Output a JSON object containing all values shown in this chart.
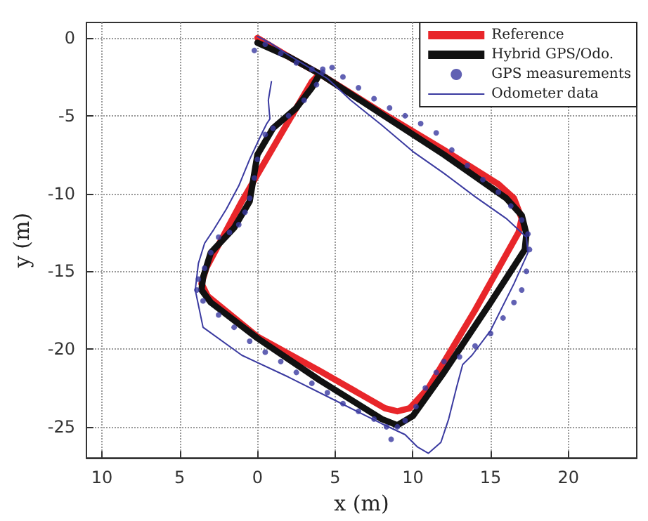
{
  "chart_data": {
    "type": "line",
    "xlabel": "x (m)",
    "ylabel": "y (m)",
    "xlim": [
      -11,
      24.4
    ],
    "ylim": [
      -27,
      1
    ],
    "xticks": [
      {
        "value": -10,
        "label": "10"
      },
      {
        "value": -5,
        "label": "5"
      },
      0,
      5,
      10,
      15,
      20
    ],
    "yticks": [
      -25,
      -20,
      -15,
      -10,
      -5,
      0
    ],
    "grid": true,
    "legend": "top right",
    "series": [
      {
        "name": "Reference",
        "color": "#e8262a",
        "line_style": "solid",
        "marker": "none",
        "x": [
          0,
          2,
          4,
          8,
          12,
          15.5,
          16.5,
          17,
          16.8,
          14,
          11,
          9.8,
          9,
          8.2,
          4,
          0,
          -3.2,
          -3.6,
          -3.3,
          -1,
          1.5,
          3.5,
          4
        ],
        "values": [
          0,
          -1.2,
          -2.3,
          -4.8,
          -7.2,
          -9.4,
          -10.3,
          -11.6,
          -12.5,
          -17.5,
          -22.5,
          -23.8,
          -24,
          -23.8,
          -21.4,
          -19.2,
          -16.6,
          -15.8,
          -14.8,
          -10.5,
          -6.2,
          -2.8,
          -2.3
        ]
      },
      {
        "name": "Hybrid GPS/Odo.",
        "color": "#111111",
        "line_style": "solid",
        "marker": "none",
        "x": [
          0,
          2,
          4,
          8,
          12,
          16,
          17,
          17.3,
          17.2,
          15,
          12,
          10,
          9,
          8,
          4,
          0,
          -3,
          -3.6,
          -3.5,
          -3,
          -1.5,
          -0.5,
          0,
          1,
          2.5,
          3.5,
          4
        ],
        "values": [
          -0.3,
          -1.2,
          -2.3,
          -4.9,
          -7.5,
          -10.3,
          -11.4,
          -12.6,
          -13.6,
          -17,
          -21.5,
          -24.3,
          -24.9,
          -24.5,
          -22,
          -19.3,
          -17,
          -16.2,
          -15.4,
          -13.8,
          -12.2,
          -10.5,
          -7.5,
          -5.8,
          -4.5,
          -3.2,
          -2.3
        ]
      },
      {
        "name": "GPS measurements",
        "type": "scatter",
        "color": "#3a3aa0",
        "marker": "circle",
        "x": [
          -0.2,
          0.5,
          1.5,
          2.5,
          3.5,
          4.2,
          4.8,
          5.5,
          6.5,
          7.5,
          8.5,
          9.5,
          10.5,
          11.5,
          12.5,
          13.5,
          14.5,
          15.5,
          16.3,
          17,
          17.4,
          17.5,
          17.3,
          17,
          16.5,
          15.8,
          15,
          14,
          13,
          12,
          11.5,
          10.8,
          10.2,
          9.5,
          9,
          8.6,
          8.3,
          7.5,
          6.5,
          5.5,
          4.5,
          3.5,
          2.5,
          1.5,
          0.5,
          -0.5,
          -1.5,
          -2.5,
          -3.5,
          -3.9,
          -3.8,
          -3.4,
          -3,
          -2.5,
          -1.8,
          -1.2,
          -0.8,
          -0.5,
          -0.2,
          0,
          0.5,
          1,
          2,
          3,
          3.8,
          4.2
        ],
        "values": [
          -0.8,
          -0.4,
          -1,
          -1.6,
          -2,
          -2,
          -1.9,
          -2.5,
          -3.2,
          -3.9,
          -4.5,
          -5,
          -5.5,
          -6.1,
          -7.2,
          -8.2,
          -9.1,
          -9.9,
          -10.8,
          -11.7,
          -12.6,
          -13.6,
          -15,
          -16.2,
          -17,
          -18,
          -19,
          -19.8,
          -20.5,
          -20.8,
          -21.5,
          -22.5,
          -23.7,
          -24.6,
          -25,
          -25.8,
          -25,
          -24.5,
          -24,
          -23.5,
          -22.8,
          -22.2,
          -21.5,
          -20.8,
          -20.2,
          -19.5,
          -18.6,
          -17.8,
          -16.9,
          -16.2,
          -15.5,
          -14.8,
          -13.8,
          -12.8,
          -12.5,
          -12,
          -11.2,
          -10.3,
          -9,
          -7.8,
          -6.2,
          -5.8,
          -5,
          -4,
          -3,
          -2.2
        ]
      },
      {
        "name": "Odometer data",
        "color": "#3a3aa0",
        "line_style": "solid",
        "marker": "none",
        "x": [
          0,
          0.8,
          2,
          3.5,
          4.5,
          6,
          8,
          10,
          12,
          14,
          16,
          17.3,
          17.4,
          16.5,
          15,
          13.8,
          13.2,
          12.8,
          12.3,
          11.8,
          11,
          10.3,
          9.5,
          8,
          5,
          2,
          -1,
          -3.5,
          -4,
          -3.8,
          -3.4,
          -2.8,
          -2,
          -1.2,
          -0.5,
          0.3,
          0.6,
          0.8,
          0.7,
          0.9
        ],
        "values": [
          0.1,
          -0.3,
          -1.1,
          -2,
          -2.6,
          -4,
          -5.6,
          -7.3,
          -8.7,
          -10.2,
          -11.6,
          -12.8,
          -13.8,
          -15.8,
          -18.8,
          -20.4,
          -21,
          -22.5,
          -24.5,
          -26,
          -26.7,
          -26.3,
          -25.5,
          -24.8,
          -23.3,
          -21.8,
          -20.4,
          -18.6,
          -16.2,
          -14.5,
          -13.2,
          -12.3,
          -11,
          -9.5,
          -7.8,
          -6.1,
          -5.5,
          -5.2,
          -4,
          -2.8
        ]
      }
    ]
  }
}
